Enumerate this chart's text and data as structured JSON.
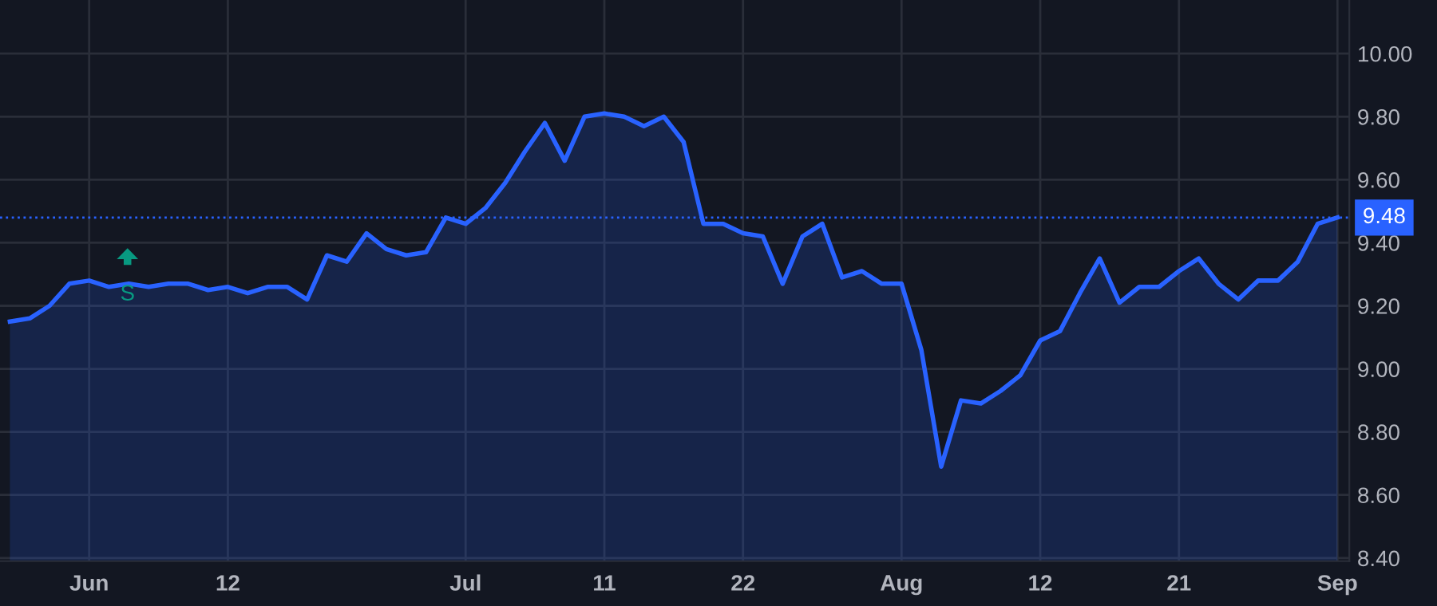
{
  "chart_data": {
    "type": "area",
    "categories": [
      null,
      null,
      null,
      null,
      "Jun",
      null,
      null,
      null,
      null,
      null,
      null,
      "12",
      null,
      null,
      null,
      null,
      null,
      null,
      null,
      null,
      null,
      null,
      null,
      "Jul",
      null,
      null,
      null,
      null,
      null,
      null,
      "11",
      null,
      null,
      null,
      null,
      null,
      null,
      "22",
      null,
      null,
      null,
      null,
      null,
      null,
      null,
      "Aug",
      null,
      null,
      null,
      null,
      null,
      null,
      "12",
      null,
      null,
      null,
      null,
      null,
      null,
      "21",
      null,
      null,
      null,
      null,
      null,
      null,
      null,
      "Sep"
    ],
    "series": [
      {
        "color": "#2962ff",
        "values": [
          9.15,
          9.16,
          9.2,
          9.27,
          9.28,
          9.26,
          9.27,
          9.26,
          9.27,
          9.27,
          9.25,
          9.26,
          9.24,
          9.26,
          9.26,
          9.22,
          9.36,
          9.34,
          9.43,
          9.38,
          9.36,
          9.37,
          9.48,
          9.46,
          9.51,
          9.59,
          9.69,
          9.78,
          9.66,
          9.8,
          9.81,
          9.8,
          9.77,
          9.8,
          9.72,
          9.46,
          9.46,
          9.43,
          9.42,
          9.27,
          9.42,
          9.46,
          9.29,
          9.31,
          9.27,
          9.27,
          9.06,
          8.69,
          8.9,
          8.89,
          8.93,
          8.98,
          9.09,
          9.12,
          9.24,
          9.35,
          9.21,
          9.26,
          9.26,
          9.31,
          9.35,
          9.27,
          9.22,
          9.28,
          9.28,
          9.34,
          9.46,
          9.48
        ]
      }
    ],
    "ylim": [
      8.39,
      10.17
    ],
    "yticks": [
      {
        "value": 8.4,
        "label": "8.40"
      },
      {
        "value": 8.6,
        "label": "8.60"
      },
      {
        "value": 8.8,
        "label": "8.80"
      },
      {
        "value": 9.0,
        "label": "9.00"
      },
      {
        "value": 9.2,
        "label": "9.20"
      },
      {
        "value": 9.4,
        "label": "9.40"
      },
      {
        "value": 9.6,
        "label": "9.60"
      },
      {
        "value": 9.8,
        "label": "9.80"
      },
      {
        "value": 10.0,
        "label": "10.00"
      }
    ],
    "ref_lines": [
      {
        "axis": "y",
        "value": 9.48,
        "label": "9.48",
        "color": "#2962ff",
        "line_style": "dotted"
      }
    ],
    "annotations": [
      "S"
    ],
    "grid": true,
    "marker": "none",
    "line_style": "solid"
  }
}
